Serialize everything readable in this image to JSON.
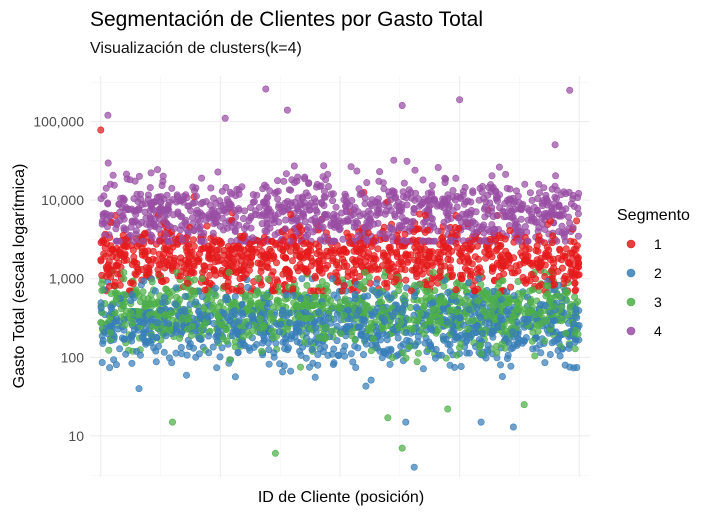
{
  "chart_data": {
    "type": "scatter",
    "title": "Segmentación de Clientes por Gasto Total",
    "subtitle": "Visualización de clusters(k=4)",
    "xlabel": "ID de Cliente (posición)",
    "ylabel": "Gasto Total (escala logarítmica)",
    "y_scale": "log10",
    "ylim": [
      3,
      380000
    ],
    "yticks": [
      10,
      100,
      1000,
      10000,
      100000
    ],
    "ytick_labels": [
      "10",
      "100",
      "1,000",
      "10,000",
      "100,000"
    ],
    "xlim": [
      -90,
      4090
    ],
    "x_tick_labels_shown": false,
    "grid": true,
    "legend": {
      "title": "Segmento",
      "position": "right",
      "entries": [
        "1",
        "2",
        "3",
        "4"
      ]
    },
    "colors": {
      "1": "#e41a1c",
      "2": "#377eb8",
      "3": "#4daf4a",
      "4": "#984ea3"
    },
    "series": [
      {
        "name": "1",
        "count": 1000,
        "value_range": [
          700,
          12000
        ],
        "notable_points": [
          [
            0,
            78000
          ],
          [
            780,
            11000
          ],
          [
            2200,
            12500
          ],
          [
            2400,
            9500
          ]
        ]
      },
      {
        "name": "2",
        "count": 1000,
        "value_range": [
          25,
          1000
        ],
        "notable_points": [
          [
            320,
            40
          ],
          [
            2550,
            15
          ],
          [
            2620,
            4
          ],
          [
            3180,
            15
          ],
          [
            3450,
            13
          ]
        ]
      },
      {
        "name": "3",
        "count": 1000,
        "value_range": [
          30,
          1200
        ],
        "notable_points": [
          [
            600,
            15
          ],
          [
            1460,
            6
          ],
          [
            2400,
            17
          ],
          [
            2520,
            7
          ],
          [
            2900,
            22
          ],
          [
            3540,
            25
          ]
        ]
      },
      {
        "name": "4",
        "count": 1000,
        "value_range": [
          3000,
          80000
        ],
        "notable_points": [
          [
            60,
            120000
          ],
          [
            1380,
            260000
          ],
          [
            3920,
            250000
          ],
          [
            2520,
            160000
          ],
          [
            3000,
            190000
          ],
          [
            1560,
            140000
          ],
          [
            1040,
            110000
          ]
        ]
      }
    ]
  }
}
